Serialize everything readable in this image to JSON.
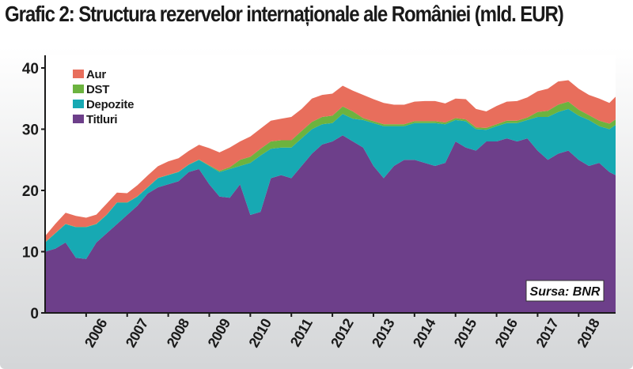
{
  "title": "Grafic 2: Structura rezervelor internaționale ale României (mld. EUR)",
  "source": "Sursa: BNR",
  "colors": {
    "Aur": "#e86e5c",
    "DST": "#6cb33f",
    "Depozite": "#17a9b3",
    "Titluri": "#6d3f8a"
  },
  "chart_data": {
    "type": "area",
    "stacked": true,
    "title": "Grafic 2: Structura rezervelor internaționale ale României (mld. EUR)",
    "xlabel": "",
    "ylabel": "",
    "ylim": [
      0,
      40
    ],
    "y_ticks": [
      0,
      10,
      20,
      30,
      40
    ],
    "x_ticks": [
      "2006",
      "2007",
      "2008",
      "2009",
      "2010",
      "2011",
      "2012",
      "2013",
      "2014",
      "2015",
      "2016",
      "2017",
      "2018"
    ],
    "x_range": [
      2005.0,
      2018.9
    ],
    "grid": false,
    "legend_position": "top-left",
    "x": [
      2005.0,
      2005.25,
      2005.5,
      2005.75,
      2006.0,
      2006.25,
      2006.5,
      2006.75,
      2007.0,
      2007.25,
      2007.5,
      2007.75,
      2008.0,
      2008.25,
      2008.5,
      2008.75,
      2009.0,
      2009.25,
      2009.5,
      2009.75,
      2010.0,
      2010.25,
      2010.5,
      2010.75,
      2011.0,
      2011.25,
      2011.5,
      2011.75,
      2012.0,
      2012.25,
      2012.5,
      2012.75,
      2013.0,
      2013.25,
      2013.5,
      2013.75,
      2014.0,
      2014.25,
      2014.5,
      2014.75,
      2015.0,
      2015.25,
      2015.5,
      2015.75,
      2016.0,
      2016.25,
      2016.5,
      2016.75,
      2017.0,
      2017.25,
      2017.5,
      2017.75,
      2018.0,
      2018.25,
      2018.5,
      2018.75,
      2018.9
    ],
    "series": [
      {
        "name": "Titluri",
        "values": [
          10.0,
          10.5,
          11.5,
          9.0,
          8.8,
          11.5,
          13.0,
          14.5,
          16.0,
          17.5,
          19.5,
          20.5,
          21.0,
          21.5,
          23.0,
          23.5,
          21.0,
          19.0,
          18.8,
          21.0,
          16.0,
          16.5,
          22.0,
          22.5,
          22.0,
          24.0,
          26.0,
          27.5,
          28.0,
          29.0,
          28.0,
          27.0,
          24.0,
          22.0,
          24.0,
          25.0,
          25.0,
          24.5,
          24.0,
          24.5,
          28.0,
          27.0,
          26.5,
          28.0,
          28.0,
          28.5,
          28.0,
          28.5,
          26.5,
          25.0,
          26.0,
          26.5,
          25.0,
          24.0,
          24.5,
          23.0,
          22.5
        ]
      },
      {
        "name": "Depozite",
        "values": [
          1.5,
          2.5,
          3.0,
          5.0,
          5.2,
          3.0,
          3.0,
          3.5,
          2.0,
          1.5,
          1.0,
          1.5,
          1.5,
          1.5,
          1.2,
          1.5,
          3.0,
          4.0,
          4.7,
          3.0,
          8.5,
          9.2,
          4.8,
          4.5,
          5.0,
          4.5,
          4.0,
          3.3,
          3.0,
          3.5,
          3.7,
          4.5,
          7.0,
          8.5,
          6.5,
          5.5,
          6.0,
          6.5,
          7.0,
          6.3,
          3.5,
          4.3,
          3.5,
          1.9,
          2.5,
          2.5,
          3.0,
          3.0,
          5.5,
          7.0,
          6.8,
          6.8,
          7.2,
          7.5,
          6.0,
          7.0,
          8.2
        ]
      },
      {
        "name": "DST",
        "values": [
          0.05,
          0.05,
          0.05,
          0.05,
          0.05,
          0.05,
          0.05,
          0.05,
          0.05,
          0.05,
          0.05,
          0.05,
          0.05,
          0.05,
          0.05,
          0.05,
          0.1,
          0.2,
          0.3,
          1.0,
          1.0,
          1.1,
          1.2,
          1.2,
          1.2,
          1.2,
          1.2,
          1.2,
          1.2,
          1.2,
          1.2,
          0.3,
          0.3,
          0.3,
          0.3,
          0.3,
          0.3,
          0.3,
          0.3,
          0.3,
          0.3,
          0.3,
          0.3,
          0.3,
          0.3,
          0.4,
          0.4,
          0.4,
          0.8,
          1.0,
          1.2,
          1.2,
          1.0,
          0.8,
          0.9,
          0.9,
          0.9
        ]
      },
      {
        "name": "Aur",
        "values": [
          1.0,
          1.5,
          1.8,
          1.8,
          1.5,
          1.5,
          1.8,
          1.6,
          1.5,
          1.8,
          1.9,
          1.9,
          2.2,
          2.2,
          2.2,
          2.4,
          2.8,
          3.0,
          3.2,
          3.0,
          3.3,
          3.3,
          3.4,
          3.5,
          3.8,
          3.6,
          3.8,
          3.6,
          3.6,
          3.4,
          3.4,
          3.8,
          3.6,
          3.5,
          3.2,
          3.2,
          3.2,
          3.3,
          3.3,
          3.1,
          3.2,
          3.3,
          3.0,
          2.7,
          3.0,
          3.1,
          3.2,
          3.3,
          3.4,
          3.6,
          3.8,
          3.5,
          3.4,
          3.3,
          3.6,
          3.4,
          3.7
        ]
      }
    ]
  }
}
